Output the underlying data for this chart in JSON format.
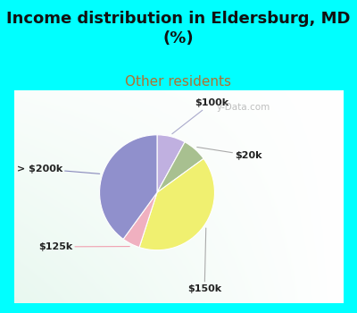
{
  "title": "Income distribution in Eldersburg, MD\n(%)",
  "subtitle": "Other residents",
  "title_color": "#111111",
  "subtitle_color": "#b07030",
  "bg_top_color": "#00FFFF",
  "slices": [
    {
      "label": "$100k",
      "value": 8,
      "color": "#c0b0e0"
    },
    {
      "label": "$20k",
      "value": 7,
      "color": "#a8c090"
    },
    {
      "label": "$150k",
      "value": 40,
      "color": "#f0f070"
    },
    {
      "label": "$125k",
      "value": 5,
      "color": "#f0b0c0"
    },
    {
      "label": "> $200k",
      "value": 40,
      "color": "#9090cc"
    }
  ],
  "watermark": "y-Data.com",
  "figsize": [
    4.0,
    3.5
  ],
  "dpi": 100,
  "title_fontsize": 13,
  "subtitle_fontsize": 11
}
